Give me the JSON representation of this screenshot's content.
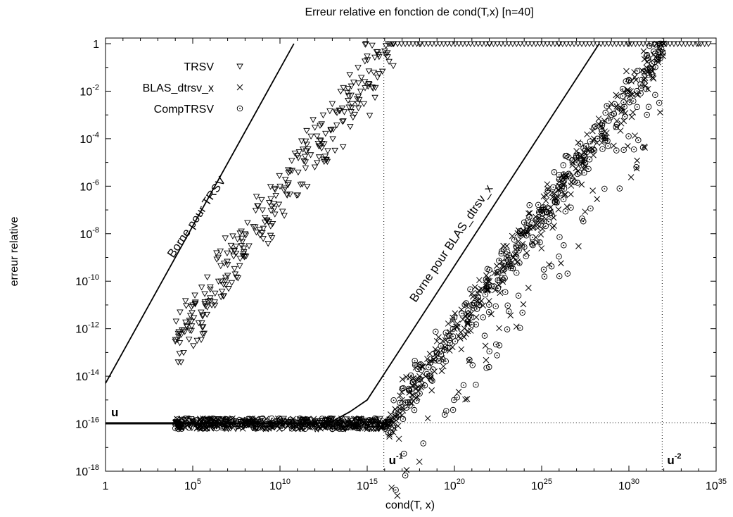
{
  "chart_data": {
    "type": "scatter",
    "title": "Erreur relative en fonction de cond(T,x) [n=40]",
    "xlabel": "cond(T, x)",
    "ylabel": "erreur relative",
    "x_scale": "log10",
    "y_scale": "log10",
    "xlim": [
      1,
      1e+35
    ],
    "ylim": [
      1e-18,
      2
    ],
    "x_ticks": [
      {
        "mantissa": "1",
        "exp": ""
      },
      {
        "mantissa": "10",
        "exp": "5"
      },
      {
        "mantissa": "10",
        "exp": "10"
      },
      {
        "mantissa": "10",
        "exp": "15"
      },
      {
        "mantissa": "10",
        "exp": "20"
      },
      {
        "mantissa": "10",
        "exp": "25"
      },
      {
        "mantissa": "10",
        "exp": "30"
      },
      {
        "mantissa": "10",
        "exp": "35"
      }
    ],
    "y_ticks": [
      {
        "mantissa": "1",
        "exp": ""
      },
      {
        "mantissa": "10",
        "exp": "-2"
      },
      {
        "mantissa": "10",
        "exp": "-4"
      },
      {
        "mantissa": "10",
        "exp": "-6"
      },
      {
        "mantissa": "10",
        "exp": "-8"
      },
      {
        "mantissa": "10",
        "exp": "-10"
      },
      {
        "mantissa": "10",
        "exp": "-12"
      },
      {
        "mantissa": "10",
        "exp": "-14"
      },
      {
        "mantissa": "10",
        "exp": "-16"
      },
      {
        "mantissa": "10",
        "exp": "-18"
      }
    ],
    "grid": false,
    "legend_position": "top-left",
    "series": [
      {
        "name": "TRSV",
        "marker": "triangle-down",
        "trend": {
          "x_start_log10": 4,
          "x_end_log10": 16.5,
          "y_start_log10": -12.5,
          "y_end_log10": 0
        },
        "points": [
          {
            "x": 10000.0,
            "y": 3e-13
          },
          {
            "x": 30000.0,
            "y": 1e-13
          },
          {
            "x": 100000.0,
            "y": 1e-11
          },
          {
            "x": 300000.0,
            "y": 5e-12
          },
          {
            "x": 1000000.0,
            "y": 2e-11
          },
          {
            "x": 3000000.0,
            "y": 1e-10
          },
          {
            "x": 10000000.0,
            "y": 5e-10
          },
          {
            "x": 30000000.0,
            "y": 3e-09
          },
          {
            "x": 100000000.0,
            "y": 1e-08
          },
          {
            "x": 300000000.0,
            "y": 2e-08
          },
          {
            "x": 1000000000.0,
            "y": 1e-07
          },
          {
            "x": 3000000000.0,
            "y": 3e-07
          },
          {
            "x": 10000000000.0,
            "y": 1e-06
          },
          {
            "x": 30000000000.0,
            "y": 5e-06
          },
          {
            "x": 100000000000.0,
            "y": 2e-05
          },
          {
            "x": 300000000000.0,
            "y": 8e-05
          },
          {
            "x": 1000000000000.0,
            "y": 0.0003
          },
          {
            "x": 3000000000000.0,
            "y": 0.001
          },
          {
            "x": 10000000000000.0,
            "y": 0.003
          },
          {
            "x": 30000000000000.0,
            "y": 0.01
          },
          {
            "x": 100000000000000.0,
            "y": 0.05
          },
          {
            "x": 300000000000000.0,
            "y": 0.1
          },
          {
            "x": 1000000000000000.0,
            "y": 0.3
          },
          {
            "x": 1e+16,
            "y": 0.5
          },
          {
            "x": 3e+16,
            "y": 1
          },
          {
            "x": 1e+18,
            "y": 1
          },
          {
            "x": 1e+22,
            "y": 1
          },
          {
            "x": 1e+26,
            "y": 1
          },
          {
            "x": 1e+30,
            "y": 1
          },
          {
            "x": 1e+34,
            "y": 1
          }
        ]
      },
      {
        "name": "BLAS_dtrsv_x",
        "marker": "cross",
        "trend": {
          "x_start_log10": 16.2,
          "x_end_log10": 32,
          "y_start_log10": -16,
          "y_end_log10": -0.2
        },
        "points": [
          {
            "x": 10000.0,
            "y": 1.1e-16
          },
          {
            "x": 1000000.0,
            "y": 1e-16
          },
          {
            "x": 100000000.0,
            "y": 1.1e-16
          },
          {
            "x": 10000000000.0,
            "y": 1e-16
          },
          {
            "x": 1000000000000.0,
            "y": 1.1e-16
          },
          {
            "x": 100000000000000.0,
            "y": 1e-16
          },
          {
            "x": 1e+16,
            "y": 1.1e-16
          },
          {
            "x": 1e+17,
            "y": 1e-15
          },
          {
            "x": 1e+18,
            "y": 1e-14
          },
          {
            "x": 1e+19,
            "y": 3e-13
          },
          {
            "x": 1e+20,
            "y": 1e-12
          },
          {
            "x": 1e+21,
            "y": 3e-11
          },
          {
            "x": 1e+22,
            "y": 1e-10
          },
          {
            "x": 1e+23,
            "y": 3e-09
          },
          {
            "x": 1e+24,
            "y": 1e-08
          },
          {
            "x": 1e+25,
            "y": 1e-07
          },
          {
            "x": 1e+26,
            "y": 1e-06
          },
          {
            "x": 1e+27,
            "y": 3e-05
          },
          {
            "x": 1e+28,
            "y": 0.0001
          },
          {
            "x": 1e+29,
            "y": 0.003
          },
          {
            "x": 1e+30,
            "y": 0.01
          },
          {
            "x": 1e+31,
            "y": 0.1
          },
          {
            "x": 1e+32,
            "y": 1
          }
        ]
      },
      {
        "name": "CompTRSV",
        "marker": "circle-dot",
        "trend": {
          "x_start_log10": 16.2,
          "x_end_log10": 32,
          "y_start_log10": -16,
          "y_end_log10": -0.2
        },
        "points": [
          {
            "x": 10000.0,
            "y": 1e-16
          },
          {
            "x": 1000000.0,
            "y": 1.1e-16
          },
          {
            "x": 100000000.0,
            "y": 1e-16
          },
          {
            "x": 10000000000.0,
            "y": 1.1e-16
          },
          {
            "x": 1000000000000.0,
            "y": 1e-16
          },
          {
            "x": 100000000000000.0,
            "y": 1.1e-16
          },
          {
            "x": 1e+16,
            "y": 1e-16
          },
          {
            "x": 1e+17,
            "y": 3e-15
          },
          {
            "x": 1e+18,
            "y": 3e-14
          },
          {
            "x": 1e+19,
            "y": 1e-13
          },
          {
            "x": 1e+20,
            "y": 3e-12
          },
          {
            "x": 1e+21,
            "y": 1e-11
          },
          {
            "x": 1e+22,
            "y": 3e-10
          },
          {
            "x": 1e+23,
            "y": 1e-09
          },
          {
            "x": 1e+24,
            "y": 3e-08
          },
          {
            "x": 1e+25,
            "y": 1e-07
          },
          {
            "x": 1e+26,
            "y": 3e-06
          },
          {
            "x": 1e+27,
            "y": 1e-05
          },
          {
            "x": 1e+28,
            "y": 0.0003
          },
          {
            "x": 1e+29,
            "y": 0.001
          },
          {
            "x": 1e+30,
            "y": 0.03
          },
          {
            "x": 1e+31,
            "y": 0.3
          },
          {
            "x": 1e+32,
            "y": 1
          }
        ]
      }
    ],
    "bound_lines": [
      {
        "label": "Borne pour TRSV",
        "points": [
          [
            0,
            -14.3
          ],
          [
            10.8,
            0
          ]
        ]
      },
      {
        "label": "Borne pour BLAS_dtrsv_x",
        "points": [
          [
            0,
            -16
          ],
          [
            12,
            -16
          ],
          [
            13,
            -15.9
          ],
          [
            14,
            -15.5
          ],
          [
            15,
            -15
          ],
          [
            28.3,
            0
          ]
        ]
      }
    ],
    "reference_lines": [
      {
        "orientation": "horizontal",
        "y": 1.1e-16,
        "label": "u",
        "exp": ""
      },
      {
        "orientation": "vertical",
        "x": 9000000000000000.0,
        "label": "u",
        "exp": "-1"
      },
      {
        "orientation": "vertical",
        "x": 8.1e+31,
        "label": "u",
        "exp": "-2"
      }
    ]
  }
}
